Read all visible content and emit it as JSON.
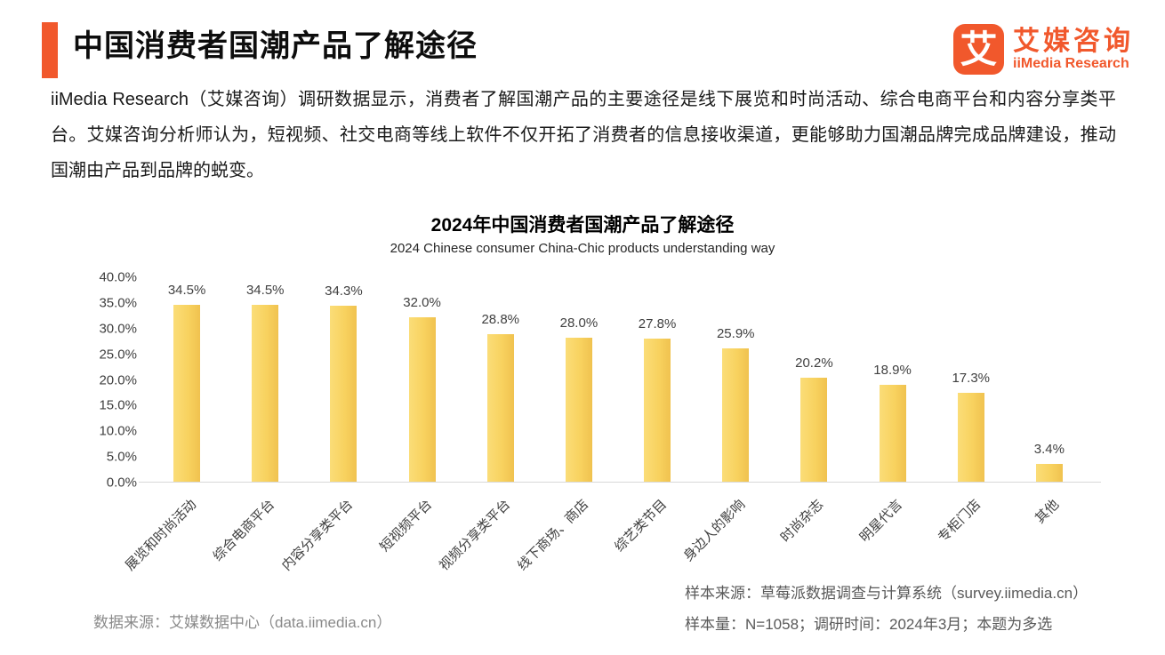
{
  "colors": {
    "accent": "#F1582C",
    "bar": "#F8D25F"
  },
  "header": {
    "title": "中国消费者国潮产品了解途径",
    "logo": {
      "icon_char": "艾",
      "name_cn": "艾媒咨询",
      "name_en": "iiMedia Research"
    }
  },
  "intro": {
    "text": "iiMedia Research（艾媒咨询）调研数据显示，消费者了解国潮产品的主要途径是线下展览和时尚活动、综合电商平台和内容分享类平台。艾媒咨询分析师认为，短视频、社交电商等线上软件不仅开拓了消费者的信息接收渠道，更能够助力国潮品牌完成品牌建设，推动国潮由产品到品牌的蜕变。"
  },
  "chart_data": {
    "type": "bar",
    "title": "2024年中国消费者国潮产品了解途径",
    "subtitle": "2024 Chinese consumer China-Chic products understanding way",
    "categories": [
      "展览和时尚活动",
      "综合电商平台",
      "内容分享类平台",
      "短视频平台",
      "视频分享类平台",
      "线下商场、商店",
      "综艺类节目",
      "身边人的影响",
      "时尚杂志",
      "明星代言",
      "专柜门店",
      "其他"
    ],
    "values": [
      34.5,
      34.5,
      34.3,
      32.0,
      28.8,
      28.0,
      27.8,
      25.9,
      20.2,
      18.9,
      17.3,
      3.4
    ],
    "value_labels": [
      "34.5%",
      "34.5%",
      "34.3%",
      "32.0%",
      "28.8%",
      "28.0%",
      "27.8%",
      "25.9%",
      "20.2%",
      "18.9%",
      "17.3%",
      "3.4%"
    ],
    "xlabel": "",
    "ylabel": "",
    "ylim": [
      0,
      40
    ],
    "ytick_step": 5,
    "ytick_labels": [
      "40.0%",
      "35.0%",
      "30.0%",
      "25.0%",
      "20.0%",
      "15.0%",
      "10.0%",
      "5.0%",
      "0.0%"
    ],
    "grid": false,
    "legend_position": "none",
    "bar_color": "#F8D25F"
  },
  "footer": {
    "source_left": "数据来源：艾媒数据中心（data.iimedia.cn）",
    "sample_source": "样本来源：草莓派数据调查与计算系统（survey.iimedia.cn）",
    "sample_info": "样本量：N=1058；调研时间：2024年3月；本题为多选"
  }
}
